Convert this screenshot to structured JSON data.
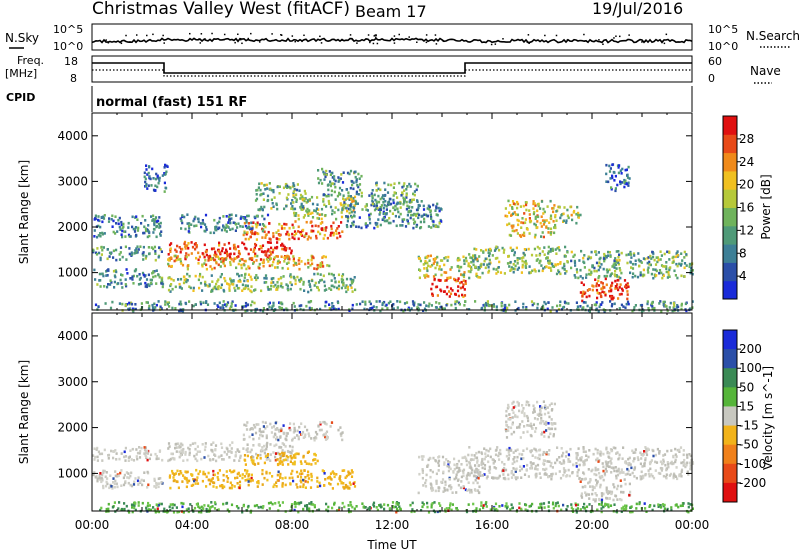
{
  "header": {
    "station": "Christmas Valley West (fitACF)",
    "beam": "Beam 17",
    "date": "19/Jul/2016"
  },
  "status_panels": {
    "nsky_label": "N.Sky",
    "nsky_ticks": [
      "10^5",
      "10^0"
    ],
    "nsearch_label": "N.Search",
    "nsearch_ticks": [
      "10^5",
      "10^0"
    ],
    "freq_label": "Freq.",
    "freq_unit": "[MHz]",
    "freq_ticks": [
      "18",
      "8"
    ],
    "nave_label": "Nave",
    "nave_ticks": [
      "60",
      "0"
    ],
    "cpid_label": "CPID",
    "cpid_value": "normal (fast) 151 RF"
  },
  "chart_data": [
    {
      "type": "heatmap",
      "panel": "power",
      "ylabel": "Slant Range [km]",
      "xlabel": "",
      "x_range_hours": [
        0,
        24
      ],
      "ylim": [
        180,
        4500
      ],
      "y_ticks": [
        1000,
        2000,
        3000,
        4000
      ],
      "colorbar": {
        "label": "Power [dB]",
        "ticks": [
          4,
          8,
          12,
          16,
          20,
          24,
          28
        ],
        "range": [
          0,
          32
        ],
        "colors": [
          "#1a2bd9",
          "#2b4fa8",
          "#3d7f96",
          "#4f9a78",
          "#6fb35c",
          "#b6c93a",
          "#f0c020",
          "#f08a1a",
          "#e84a18",
          "#e01010"
        ]
      },
      "regions": [
        {
          "t0": 0.0,
          "t1": 2.8,
          "r0": 1300,
          "r1": 1600,
          "level": 0.35
        },
        {
          "t0": 0.0,
          "t1": 2.8,
          "r0": 700,
          "r1": 1100,
          "level": 0.3
        },
        {
          "t0": 0.0,
          "t1": 2.8,
          "r0": 1800,
          "r1": 2300,
          "level": 0.25
        },
        {
          "t0": 2.0,
          "t1": 3.0,
          "r0": 2800,
          "r1": 3400,
          "level": 0.2
        },
        {
          "t0": 3.0,
          "t1": 8.0,
          "r0": 1300,
          "r1": 1700,
          "level": 0.9
        },
        {
          "t0": 3.0,
          "t1": 9.5,
          "r0": 1100,
          "r1": 1400,
          "level": 0.65
        },
        {
          "t0": 6.0,
          "t1": 10.0,
          "r0": 1750,
          "r1": 2150,
          "level": 0.8
        },
        {
          "t0": 8.0,
          "t1": 10.5,
          "r0": 2200,
          "r1": 2700,
          "level": 0.5
        },
        {
          "t0": 3.0,
          "t1": 10.5,
          "r0": 600,
          "r1": 1000,
          "level": 0.45
        },
        {
          "t0": 3.5,
          "t1": 7.0,
          "r0": 1900,
          "r1": 2300,
          "level": 0.25
        },
        {
          "t0": 6.5,
          "t1": 8.5,
          "r0": 2400,
          "r1": 3000,
          "level": 0.4
        },
        {
          "t0": 9.0,
          "t1": 10.8,
          "r0": 2700,
          "r1": 3300,
          "level": 0.3
        },
        {
          "t0": 10.0,
          "t1": 14.0,
          "r0": 2000,
          "r1": 2600,
          "level": 0.3
        },
        {
          "t0": 11.0,
          "t1": 13.0,
          "r0": 2400,
          "r1": 3000,
          "level": 0.35
        },
        {
          "t0": 13.5,
          "t1": 15.0,
          "r0": 500,
          "r1": 900,
          "level": 0.9
        },
        {
          "t0": 13.0,
          "t1": 15.5,
          "r0": 900,
          "r1": 1400,
          "level": 0.55
        },
        {
          "t0": 15.0,
          "t1": 19.0,
          "r0": 1000,
          "r1": 1600,
          "level": 0.45
        },
        {
          "t0": 16.5,
          "t1": 18.5,
          "r0": 1800,
          "r1": 2600,
          "level": 0.6
        },
        {
          "t0": 18.5,
          "t1": 19.5,
          "r0": 2100,
          "r1": 2500,
          "level": 0.5
        },
        {
          "t0": 19.5,
          "t1": 21.5,
          "r0": 400,
          "r1": 900,
          "level": 0.9
        },
        {
          "t0": 19.0,
          "t1": 24.0,
          "r0": 900,
          "r1": 1500,
          "level": 0.4
        },
        {
          "t0": 20.5,
          "t1": 21.5,
          "r0": 2800,
          "r1": 3400,
          "level": 0.2
        },
        {
          "t0": 0.0,
          "t1": 24.0,
          "r0": 180,
          "r1": 400,
          "level": 0.3
        }
      ]
    },
    {
      "type": "heatmap",
      "panel": "velocity",
      "ylabel": "Slant Range [km]",
      "xlabel": "Time UT",
      "x_range_hours": [
        0,
        24
      ],
      "x_tick_labels": [
        "00:00",
        "04:00",
        "08:00",
        "12:00",
        "16:00",
        "20:00",
        "00:00"
      ],
      "ylim": [
        180,
        4500
      ],
      "y_ticks": [
        1000,
        2000,
        3000,
        4000
      ],
      "colorbar": {
        "label": "Velocity [m s^-1]",
        "ticks": [
          "200",
          "100",
          "50",
          "15",
          "-15",
          "-50",
          "-100",
          "-200"
        ],
        "colors": [
          "#1a2bd9",
          "#2b4fa8",
          "#3a8a55",
          "#56b53a",
          "#c8c8c0",
          "#f2b31a",
          "#f0801a",
          "#e84a18",
          "#e01010"
        ]
      },
      "regions": [
        {
          "t0": 0.0,
          "t1": 2.8,
          "r0": 1300,
          "r1": 1600,
          "color": "gray"
        },
        {
          "t0": 0.0,
          "t1": 2.8,
          "r0": 700,
          "r1": 1100,
          "color": "gray"
        },
        {
          "t0": 3.0,
          "t1": 8.0,
          "r0": 1300,
          "r1": 1700,
          "color": "gray"
        },
        {
          "t0": 6.0,
          "t1": 10.0,
          "r0": 1750,
          "r1": 2150,
          "color": "gray"
        },
        {
          "t0": 3.0,
          "t1": 10.5,
          "r0": 700,
          "r1": 1100,
          "color": "orange"
        },
        {
          "t0": 6.0,
          "t1": 9.0,
          "r0": 1200,
          "r1": 1500,
          "color": "orange"
        },
        {
          "t0": 13.0,
          "t1": 15.5,
          "r0": 600,
          "r1": 1400,
          "color": "gray"
        },
        {
          "t0": 15.0,
          "t1": 24.0,
          "r0": 900,
          "r1": 1600,
          "color": "gray"
        },
        {
          "t0": 16.5,
          "t1": 18.5,
          "r0": 1800,
          "r1": 2600,
          "color": "gray"
        },
        {
          "t0": 19.5,
          "t1": 21.5,
          "r0": 400,
          "r1": 900,
          "color": "gray"
        },
        {
          "t0": 0.0,
          "t1": 24.0,
          "r0": 180,
          "r1": 400,
          "color": "green"
        }
      ]
    }
  ]
}
